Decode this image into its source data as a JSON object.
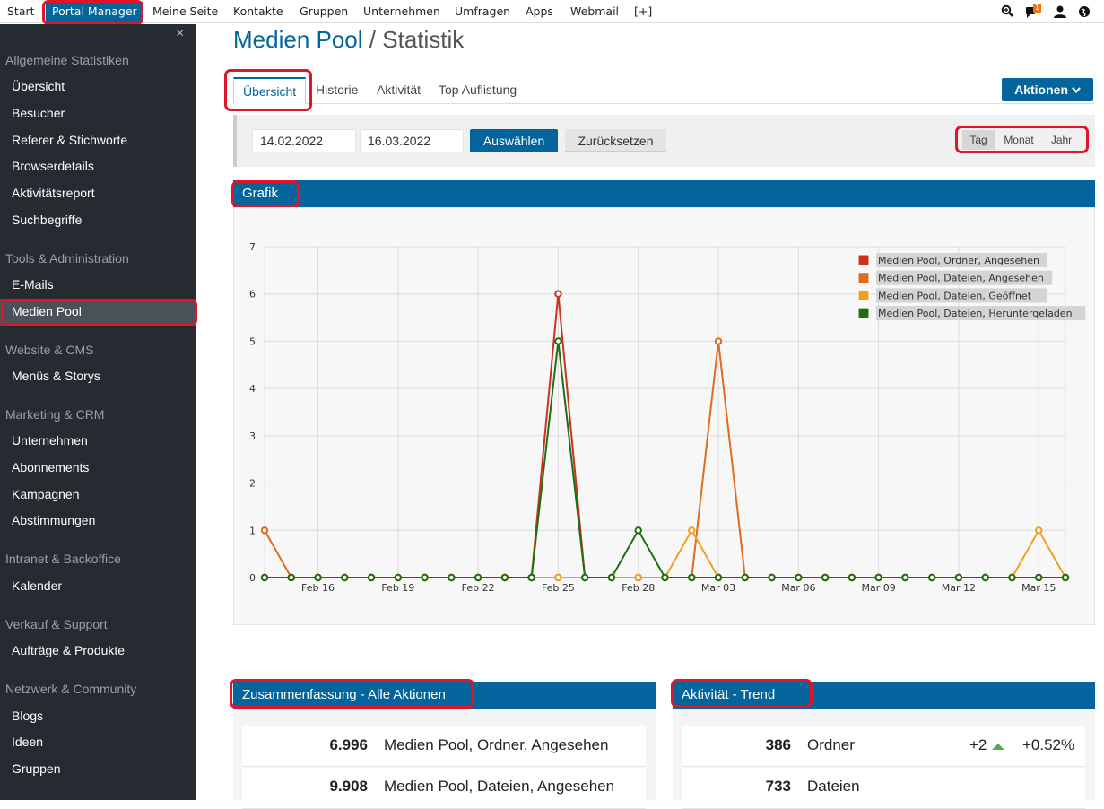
{
  "topnav": {
    "items": [
      "Start",
      "Portal Manager",
      "Meine Seite",
      "Kontakte",
      "Gruppen",
      "Unternehmen",
      "Umfragen",
      "Apps",
      "Webmail",
      "[+]"
    ],
    "notification_count": "1",
    "icons": [
      "zoom-icon",
      "chat-icon",
      "user-icon",
      "globe-icon"
    ]
  },
  "sidebar": {
    "close": "×",
    "sections": [
      {
        "title": "Allgemeine Statistiken",
        "links": [
          "Übersicht",
          "Besucher",
          "Referer & Stichworte",
          "Browserdetails",
          "Aktivitätsreport",
          "Suchbegriffe"
        ]
      },
      {
        "title": "Tools & Administration",
        "links": [
          "E-Mails",
          "Medien Pool"
        ]
      },
      {
        "title": "Website & CMS",
        "links": [
          "Menüs & Storys"
        ]
      },
      {
        "title": "Marketing & CRM",
        "links": [
          "Unternehmen",
          "Abonnements",
          "Kampagnen",
          "Abstimmungen"
        ]
      },
      {
        "title": "Intranet & Backoffice",
        "links": [
          "Kalender"
        ]
      },
      {
        "title": "Verkauf & Support",
        "links": [
          "Aufträge & Produkte"
        ]
      },
      {
        "title": "Netzwerk & Community",
        "links": [
          "Blogs",
          "Ideen",
          "Gruppen"
        ]
      }
    ]
  },
  "page": {
    "title": "Medien Pool",
    "separator": "/",
    "subtitle": "Statistik"
  },
  "tabs": [
    "Übersicht",
    "Historie",
    "Aktivität",
    "Top Auflistung"
  ],
  "actions_label": "Aktionen",
  "filter": {
    "from": "14.02.2022",
    "to": "16.03.2022",
    "select_label": "Auswählen",
    "reset_label": "Zurücksetzen",
    "periods": [
      "Tag",
      "Monat",
      "Jahr"
    ]
  },
  "chart_title": "Grafik",
  "chart_data": {
    "type": "line",
    "x": [
      "Feb 14",
      "Feb 15",
      "Feb 16",
      "Feb 17",
      "Feb 18",
      "Feb 19",
      "Feb 20",
      "Feb 21",
      "Feb 22",
      "Feb 23",
      "Feb 24",
      "Feb 25",
      "Feb 26",
      "Feb 27",
      "Feb 28",
      "Mar 01",
      "Mar 02",
      "Mar 03",
      "Mar 04",
      "Mar 05",
      "Mar 06",
      "Mar 07",
      "Mar 08",
      "Mar 09",
      "Mar 10",
      "Mar 11",
      "Mar 12",
      "Mar 13",
      "Mar 14",
      "Mar 15",
      "Mar 16"
    ],
    "tick_labels": [
      "Feb 16",
      "Feb 19",
      "Feb 22",
      "Feb 25",
      "Feb 28",
      "Mar 03",
      "Mar 06",
      "Mar 09",
      "Mar 12",
      "Mar 15"
    ],
    "ylim": [
      0,
      7
    ],
    "yticks": [
      0,
      1,
      2,
      3,
      4,
      5,
      6,
      7
    ],
    "legend_position": "top-right",
    "grid": true,
    "series": [
      {
        "name": "Medien Pool, Ordner, Angesehen",
        "color": "#c8321e",
        "values": [
          0,
          0,
          0,
          0,
          0,
          0,
          0,
          0,
          0,
          0,
          0,
          6,
          0,
          0,
          0,
          0,
          0,
          0,
          0,
          0,
          0,
          0,
          0,
          0,
          0,
          0,
          0,
          0,
          0,
          0,
          0
        ]
      },
      {
        "name": "Medien Pool, Dateien, Angesehen",
        "color": "#e06a1e",
        "values": [
          1,
          0,
          0,
          0,
          0,
          0,
          0,
          0,
          0,
          0,
          0,
          0,
          0,
          0,
          0,
          0,
          0,
          5,
          0,
          0,
          0,
          0,
          0,
          0,
          0,
          0,
          0,
          0,
          0,
          0,
          0
        ]
      },
      {
        "name": "Medien Pool, Dateien, Geöffnet",
        "color": "#f0a020",
        "values": [
          0,
          0,
          0,
          0,
          0,
          0,
          0,
          0,
          0,
          0,
          0,
          0,
          0,
          0,
          0,
          0,
          1,
          0,
          0,
          0,
          0,
          0,
          0,
          0,
          0,
          0,
          0,
          0,
          0,
          1,
          0
        ]
      },
      {
        "name": "Medien Pool, Dateien, Heruntergeladen",
        "color": "#1f6e12",
        "values": [
          0,
          0,
          0,
          0,
          0,
          0,
          0,
          0,
          0,
          0,
          0,
          5,
          0,
          0,
          1,
          0,
          0,
          0,
          0,
          0,
          0,
          0,
          0,
          0,
          0,
          0,
          0,
          0,
          0,
          0,
          0
        ]
      }
    ]
  },
  "summary": {
    "title": "Zusammenfassung - Alle Aktionen",
    "rows": [
      {
        "value": "6.996",
        "label": "Medien Pool, Ordner, Angesehen"
      },
      {
        "value": "9.908",
        "label": "Medien Pool, Dateien, Angesehen"
      }
    ]
  },
  "trend": {
    "title": "Aktivität - Trend",
    "rows": [
      {
        "value": "386",
        "label": "Ordner",
        "change": "+2",
        "percent": "+0.52%"
      },
      {
        "value": "733",
        "label": "Dateien",
        "change": "",
        "percent": ""
      }
    ]
  }
}
